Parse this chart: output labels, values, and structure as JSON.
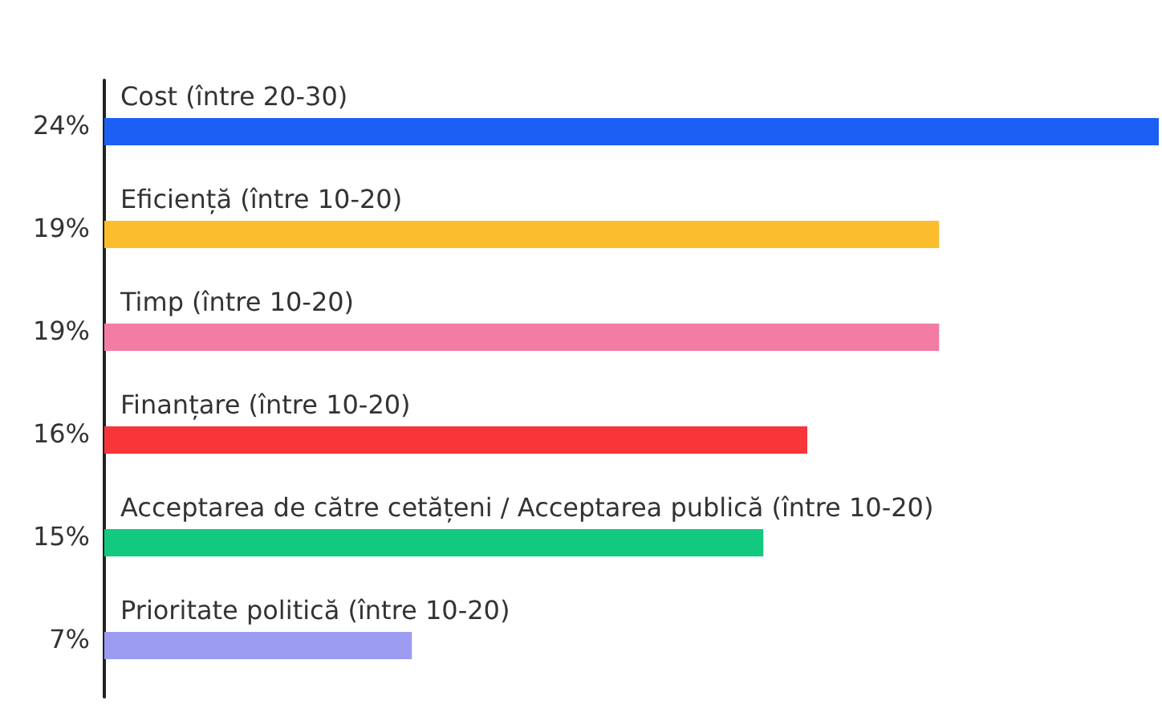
{
  "chart_data": {
    "type": "bar",
    "orientation": "horizontal",
    "categories": [
      "Cost (între 20-30)",
      "Eficiență (între 10-20)",
      "Timp (între 10-20)",
      "Finanțare (între 10-20)",
      "Acceptarea de către cetățeni / Acceptarea publică (între 10-20)",
      "Prioritate politică (între 10-20)"
    ],
    "values": [
      24,
      19,
      19,
      16,
      15,
      7
    ],
    "colors": [
      "#1b5ff5",
      "#fbbd2c",
      "#f27ca3",
      "#f8363a",
      "#12c97f",
      "#9b9cf0"
    ],
    "value_labels": [
      "24%",
      "19%",
      "19%",
      "16%",
      "15%",
      "7%"
    ],
    "tick_labels": "y"
  }
}
